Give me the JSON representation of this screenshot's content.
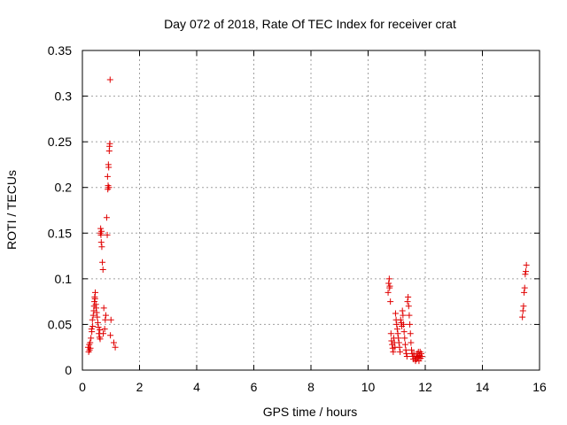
{
  "chart_data": {
    "type": "scatter",
    "title": "Day 072 of 2018, Rate Of TEC Index for receiver crat",
    "xlabel": "GPS time / hours",
    "ylabel": "ROTI / TECUs",
    "xlim": [
      0,
      16
    ],
    "ylim": [
      0,
      0.35
    ],
    "xticks": [
      0,
      2,
      4,
      6,
      8,
      10,
      12,
      14,
      16
    ],
    "xtick_labels": [
      "0",
      "2",
      "4",
      "6",
      "8",
      "10",
      "12",
      "14",
      "16"
    ],
    "yticks": [
      0,
      0.05,
      0.1,
      0.15,
      0.2,
      0.25,
      0.3,
      0.35
    ],
    "ytick_labels": [
      "0",
      "0.05",
      "0.1",
      "0.15",
      "0.2",
      "0.25",
      "0.3",
      "0.35"
    ],
    "grid": true,
    "marker": "+",
    "color": "#e00000",
    "series": [
      {
        "name": "ROTI",
        "points": [
          [
            0.2,
            0.025
          ],
          [
            0.22,
            0.02
          ],
          [
            0.24,
            0.028
          ],
          [
            0.25,
            0.022
          ],
          [
            0.27,
            0.03
          ],
          [
            0.28,
            0.024
          ],
          [
            0.3,
            0.035
          ],
          [
            0.32,
            0.045
          ],
          [
            0.33,
            0.042
          ],
          [
            0.35,
            0.055
          ],
          [
            0.36,
            0.048
          ],
          [
            0.38,
            0.06
          ],
          [
            0.4,
            0.065
          ],
          [
            0.41,
            0.07
          ],
          [
            0.42,
            0.075
          ],
          [
            0.43,
            0.08
          ],
          [
            0.44,
            0.078
          ],
          [
            0.45,
            0.085
          ],
          [
            0.47,
            0.072
          ],
          [
            0.48,
            0.068
          ],
          [
            0.5,
            0.063
          ],
          [
            0.52,
            0.058
          ],
          [
            0.54,
            0.052
          ],
          [
            0.56,
            0.047
          ],
          [
            0.58,
            0.04
          ],
          [
            0.6,
            0.036
          ],
          [
            0.61,
            0.044
          ],
          [
            0.62,
            0.034
          ],
          [
            0.63,
            0.15
          ],
          [
            0.64,
            0.155
          ],
          [
            0.65,
            0.148
          ],
          [
            0.66,
            0.14
          ],
          [
            0.67,
            0.152
          ],
          [
            0.68,
            0.135
          ],
          [
            0.7,
            0.118
          ],
          [
            0.72,
            0.11
          ],
          [
            0.73,
            0.04
          ],
          [
            0.75,
            0.068
          ],
          [
            0.78,
            0.045
          ],
          [
            0.8,
            0.055
          ],
          [
            0.82,
            0.06
          ],
          [
            0.85,
            0.167
          ],
          [
            0.87,
            0.148
          ],
          [
            0.88,
            0.212
          ],
          [
            0.89,
            0.198
          ],
          [
            0.9,
            0.202
          ],
          [
            0.91,
            0.225
          ],
          [
            0.92,
            0.222
          ],
          [
            0.93,
            0.2
          ],
          [
            0.94,
            0.24
          ],
          [
            0.95,
            0.245
          ],
          [
            0.96,
            0.248
          ],
          [
            0.97,
            0.318
          ],
          [
            0.98,
            0.038
          ],
          [
            1.0,
            0.055
          ],
          [
            1.1,
            0.03
          ],
          [
            1.15,
            0.025
          ],
          [
            10.7,
            0.085
          ],
          [
            10.72,
            0.095
          ],
          [
            10.74,
            0.1
          ],
          [
            10.75,
            0.09
          ],
          [
            10.76,
            0.092
          ],
          [
            10.78,
            0.075
          ],
          [
            10.8,
            0.04
          ],
          [
            10.82,
            0.032
          ],
          [
            10.84,
            0.028
          ],
          [
            10.86,
            0.024
          ],
          [
            10.88,
            0.02
          ],
          [
            10.9,
            0.035
          ],
          [
            10.92,
            0.03
          ],
          [
            10.94,
            0.025
          ],
          [
            10.96,
            0.062
          ],
          [
            10.98,
            0.055
          ],
          [
            11.0,
            0.05
          ],
          [
            11.02,
            0.045
          ],
          [
            11.04,
            0.04
          ],
          [
            11.06,
            0.035
          ],
          [
            11.08,
            0.03
          ],
          [
            11.1,
            0.025
          ],
          [
            11.12,
            0.02
          ],
          [
            11.14,
            0.055
          ],
          [
            11.16,
            0.052
          ],
          [
            11.18,
            0.048
          ],
          [
            11.2,
            0.065
          ],
          [
            11.22,
            0.06
          ],
          [
            11.24,
            0.05
          ],
          [
            11.26,
            0.042
          ],
          [
            11.28,
            0.035
          ],
          [
            11.3,
            0.028
          ],
          [
            11.32,
            0.022
          ],
          [
            11.34,
            0.018
          ],
          [
            11.36,
            0.015
          ],
          [
            11.38,
            0.075
          ],
          [
            11.4,
            0.08
          ],
          [
            11.42,
            0.07
          ],
          [
            11.44,
            0.06
          ],
          [
            11.46,
            0.05
          ],
          [
            11.48,
            0.04
          ],
          [
            11.5,
            0.03
          ],
          [
            11.52,
            0.022
          ],
          [
            11.54,
            0.018
          ],
          [
            11.56,
            0.015
          ],
          [
            11.58,
            0.012
          ],
          [
            11.6,
            0.018
          ],
          [
            11.62,
            0.015
          ],
          [
            11.64,
            0.012
          ],
          [
            11.66,
            0.01
          ],
          [
            11.68,
            0.015
          ],
          [
            11.7,
            0.012
          ],
          [
            11.72,
            0.018
          ],
          [
            11.74,
            0.014
          ],
          [
            11.76,
            0.02
          ],
          [
            11.78,
            0.01
          ],
          [
            11.8,
            0.016
          ],
          [
            11.82,
            0.02
          ],
          [
            11.84,
            0.013
          ],
          [
            11.86,
            0.018
          ],
          [
            11.88,
            0.015
          ],
          [
            15.4,
            0.058
          ],
          [
            15.42,
            0.065
          ],
          [
            15.44,
            0.07
          ],
          [
            15.46,
            0.085
          ],
          [
            15.48,
            0.09
          ],
          [
            15.5,
            0.105
          ],
          [
            15.52,
            0.108
          ],
          [
            15.54,
            0.115
          ]
        ]
      }
    ]
  }
}
